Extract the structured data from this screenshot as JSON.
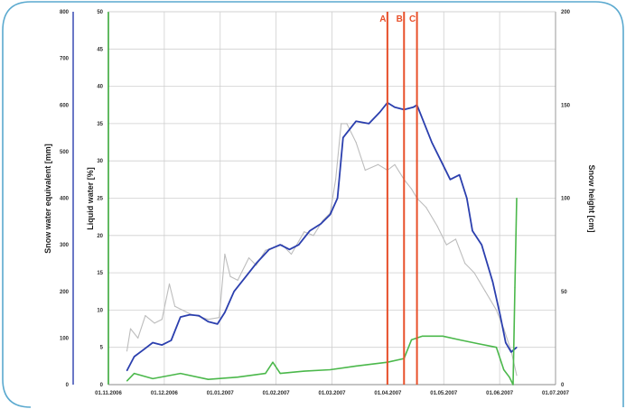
{
  "chart_data": {
    "type": "line",
    "title": "",
    "grid": true,
    "colors": {
      "frame": "#5aa9cf",
      "swe_axis": "#2b3fae",
      "lw_axis": "#3aa83a",
      "sh_axis": "#9a9a9a",
      "grid": "#cfcfcf",
      "marker": "#e8502a"
    },
    "x_ticks": [
      "01.11.2006",
      "01.12.2006",
      "01.01.2007",
      "01.02.2007",
      "01.03.2007",
      "01.04.2007",
      "01.05.2007",
      "01.06.2007",
      "01.07.2007"
    ],
    "xlim": [
      "2006-11-01",
      "2007-07-01"
    ],
    "y_left_outer": {
      "label": "Snow water equivalent [mm]",
      "ylim": [
        0,
        800
      ],
      "ticks": [
        "0",
        "100",
        "200",
        "300",
        "400",
        "500",
        "600",
        "700",
        "800"
      ]
    },
    "y_left_inner": {
      "label": "Liquid water [%]",
      "ylim": [
        0,
        50
      ],
      "ticks": [
        "0",
        "5",
        "10",
        "15",
        "20",
        "25",
        "30",
        "35",
        "40",
        "45",
        "50"
      ]
    },
    "y_right": {
      "label": "Snow height [cm]",
      "ylim": [
        0,
        200
      ],
      "ticks": [
        "0",
        "50",
        "100",
        "150",
        "200"
      ]
    },
    "markers": [
      {
        "label": "A",
        "x": "2007-04-01"
      },
      {
        "label": "B",
        "x": "2007-04-10"
      },
      {
        "label": "C",
        "x": "2007-04-17"
      }
    ],
    "series": [
      {
        "axis": "y_left_outer",
        "color": "#2b3fae",
        "points": [
          [
            "2006-11-11",
            30
          ],
          [
            "2006-11-15",
            60
          ],
          [
            "2006-11-20",
            75
          ],
          [
            "2006-11-25",
            90
          ],
          [
            "2006-11-30",
            85
          ],
          [
            "2006-12-05",
            95
          ],
          [
            "2006-12-10",
            145
          ],
          [
            "2006-12-15",
            150
          ],
          [
            "2006-12-20",
            148
          ],
          [
            "2006-12-25",
            135
          ],
          [
            "2006-12-30",
            130
          ],
          [
            "2007-01-03",
            155
          ],
          [
            "2007-01-08",
            200
          ],
          [
            "2007-01-14",
            230
          ],
          [
            "2007-01-20",
            260
          ],
          [
            "2007-01-27",
            290
          ],
          [
            "2007-02-02",
            300
          ],
          [
            "2007-02-07",
            290
          ],
          [
            "2007-02-12",
            300
          ],
          [
            "2007-02-18",
            330
          ],
          [
            "2007-02-24",
            345
          ],
          [
            "2007-03-01",
            365
          ],
          [
            "2007-03-05",
            400
          ],
          [
            "2007-03-08",
            530
          ],
          [
            "2007-03-15",
            565
          ],
          [
            "2007-03-22",
            560
          ],
          [
            "2007-03-28",
            585
          ],
          [
            "2007-04-01",
            605
          ],
          [
            "2007-04-05",
            595
          ],
          [
            "2007-04-10",
            590
          ],
          [
            "2007-04-15",
            595
          ],
          [
            "2007-04-17",
            600
          ],
          [
            "2007-04-20",
            570
          ],
          [
            "2007-04-25",
            520
          ],
          [
            "2007-04-30",
            480
          ],
          [
            "2007-05-05",
            440
          ],
          [
            "2007-05-10",
            450
          ],
          [
            "2007-05-14",
            400
          ],
          [
            "2007-05-17",
            330
          ],
          [
            "2007-05-22",
            300
          ],
          [
            "2007-05-28",
            220
          ],
          [
            "2007-06-01",
            150
          ],
          [
            "2007-06-04",
            90
          ],
          [
            "2007-06-07",
            70
          ],
          [
            "2007-06-10",
            80
          ]
        ]
      },
      {
        "axis": "y_right",
        "color": "#bdbdbd",
        "points": [
          [
            "2006-11-11",
            18
          ],
          [
            "2006-11-13",
            30
          ],
          [
            "2006-11-17",
            25
          ],
          [
            "2006-11-21",
            37
          ],
          [
            "2006-11-26",
            33
          ],
          [
            "2006-11-30",
            35
          ],
          [
            "2006-12-04",
            54
          ],
          [
            "2006-12-07",
            42
          ],
          [
            "2006-12-15",
            38
          ],
          [
            "2006-12-25",
            35
          ],
          [
            "2006-12-31",
            36
          ],
          [
            "2007-01-03",
            70
          ],
          [
            "2007-01-06",
            58
          ],
          [
            "2007-01-10",
            56
          ],
          [
            "2007-01-16",
            68
          ],
          [
            "2007-01-20",
            64
          ],
          [
            "2007-01-25",
            72
          ],
          [
            "2007-01-31",
            74
          ],
          [
            "2007-02-03",
            75
          ],
          [
            "2007-02-08",
            70
          ],
          [
            "2007-02-15",
            82
          ],
          [
            "2007-02-20",
            80
          ],
          [
            "2007-02-25",
            88
          ],
          [
            "2007-03-01",
            92
          ],
          [
            "2007-03-04",
            110
          ],
          [
            "2007-03-07",
            140
          ],
          [
            "2007-03-10",
            140
          ],
          [
            "2007-03-15",
            130
          ],
          [
            "2007-03-20",
            115
          ],
          [
            "2007-03-27",
            118
          ],
          [
            "2007-04-01",
            115
          ],
          [
            "2007-04-05",
            118
          ],
          [
            "2007-04-10",
            110
          ],
          [
            "2007-04-14",
            105
          ],
          [
            "2007-04-17",
            100
          ],
          [
            "2007-04-22",
            95
          ],
          [
            "2007-04-28",
            85
          ],
          [
            "2007-05-03",
            75
          ],
          [
            "2007-05-08",
            78
          ],
          [
            "2007-05-13",
            65
          ],
          [
            "2007-05-18",
            60
          ],
          [
            "2007-05-24",
            50
          ],
          [
            "2007-05-30",
            40
          ],
          [
            "2007-06-03",
            30
          ],
          [
            "2007-06-07",
            18
          ],
          [
            "2007-06-10",
            5
          ]
        ]
      },
      {
        "axis": "y_left_inner",
        "color": "#4bb84b",
        "points": [
          [
            "2006-11-11",
            0.5
          ],
          [
            "2006-11-15",
            1.5
          ],
          [
            "2006-11-25",
            0.8
          ],
          [
            "2006-12-10",
            1.5
          ],
          [
            "2006-12-25",
            0.7
          ],
          [
            "2007-01-10",
            1
          ],
          [
            "2007-01-25",
            1.5
          ],
          [
            "2007-01-29",
            3
          ],
          [
            "2007-02-02",
            1.5
          ],
          [
            "2007-02-15",
            1.8
          ],
          [
            "2007-03-01",
            2
          ],
          [
            "2007-03-15",
            2.5
          ],
          [
            "2007-04-01",
            3
          ],
          [
            "2007-04-10",
            3.5
          ],
          [
            "2007-04-14",
            6
          ],
          [
            "2007-04-20",
            6.5
          ],
          [
            "2007-05-01",
            6.5
          ],
          [
            "2007-05-10",
            6
          ],
          [
            "2007-05-20",
            5.5
          ],
          [
            "2007-05-30",
            5
          ],
          [
            "2007-06-03",
            2
          ],
          [
            "2007-06-06",
            1
          ],
          [
            "2007-06-08",
            0
          ],
          [
            "2007-06-09",
            13
          ],
          [
            "2007-06-10",
            25
          ]
        ]
      }
    ]
  }
}
